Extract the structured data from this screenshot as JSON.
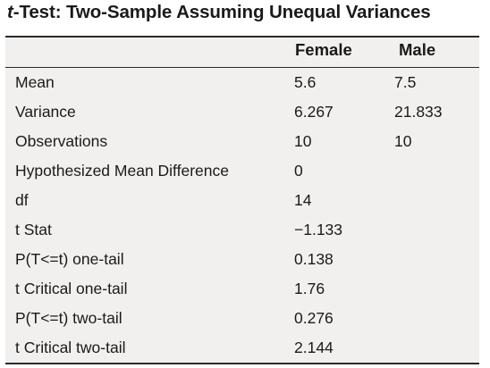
{
  "title": {
    "italic": "t",
    "rest": "-Test: Two-Sample Assuming Unequal Variances"
  },
  "columns": {
    "female": "Female",
    "male": "Male"
  },
  "rows": [
    {
      "label": "Mean",
      "female": "5.6",
      "male": "7.5"
    },
    {
      "label": "Variance",
      "female": "6.267",
      "male": "21.833"
    },
    {
      "label": "Observations",
      "female": "10",
      "male": "10"
    },
    {
      "label": "Hypothesized Mean Difference",
      "female": "0",
      "male": ""
    },
    {
      "label": "df",
      "female": "14",
      "male": ""
    },
    {
      "label": "t Stat",
      "female": "−1.133",
      "male": ""
    },
    {
      "label": "P(T<=t) one-tail",
      "female": "0.138",
      "male": ""
    },
    {
      "label": "t Critical one-tail",
      "female": "1.76",
      "male": ""
    },
    {
      "label": "P(T<=t) two-tail",
      "female": "0.276",
      "male": ""
    },
    {
      "label": "t Critical two-tail",
      "female": "2.144",
      "male": ""
    }
  ]
}
